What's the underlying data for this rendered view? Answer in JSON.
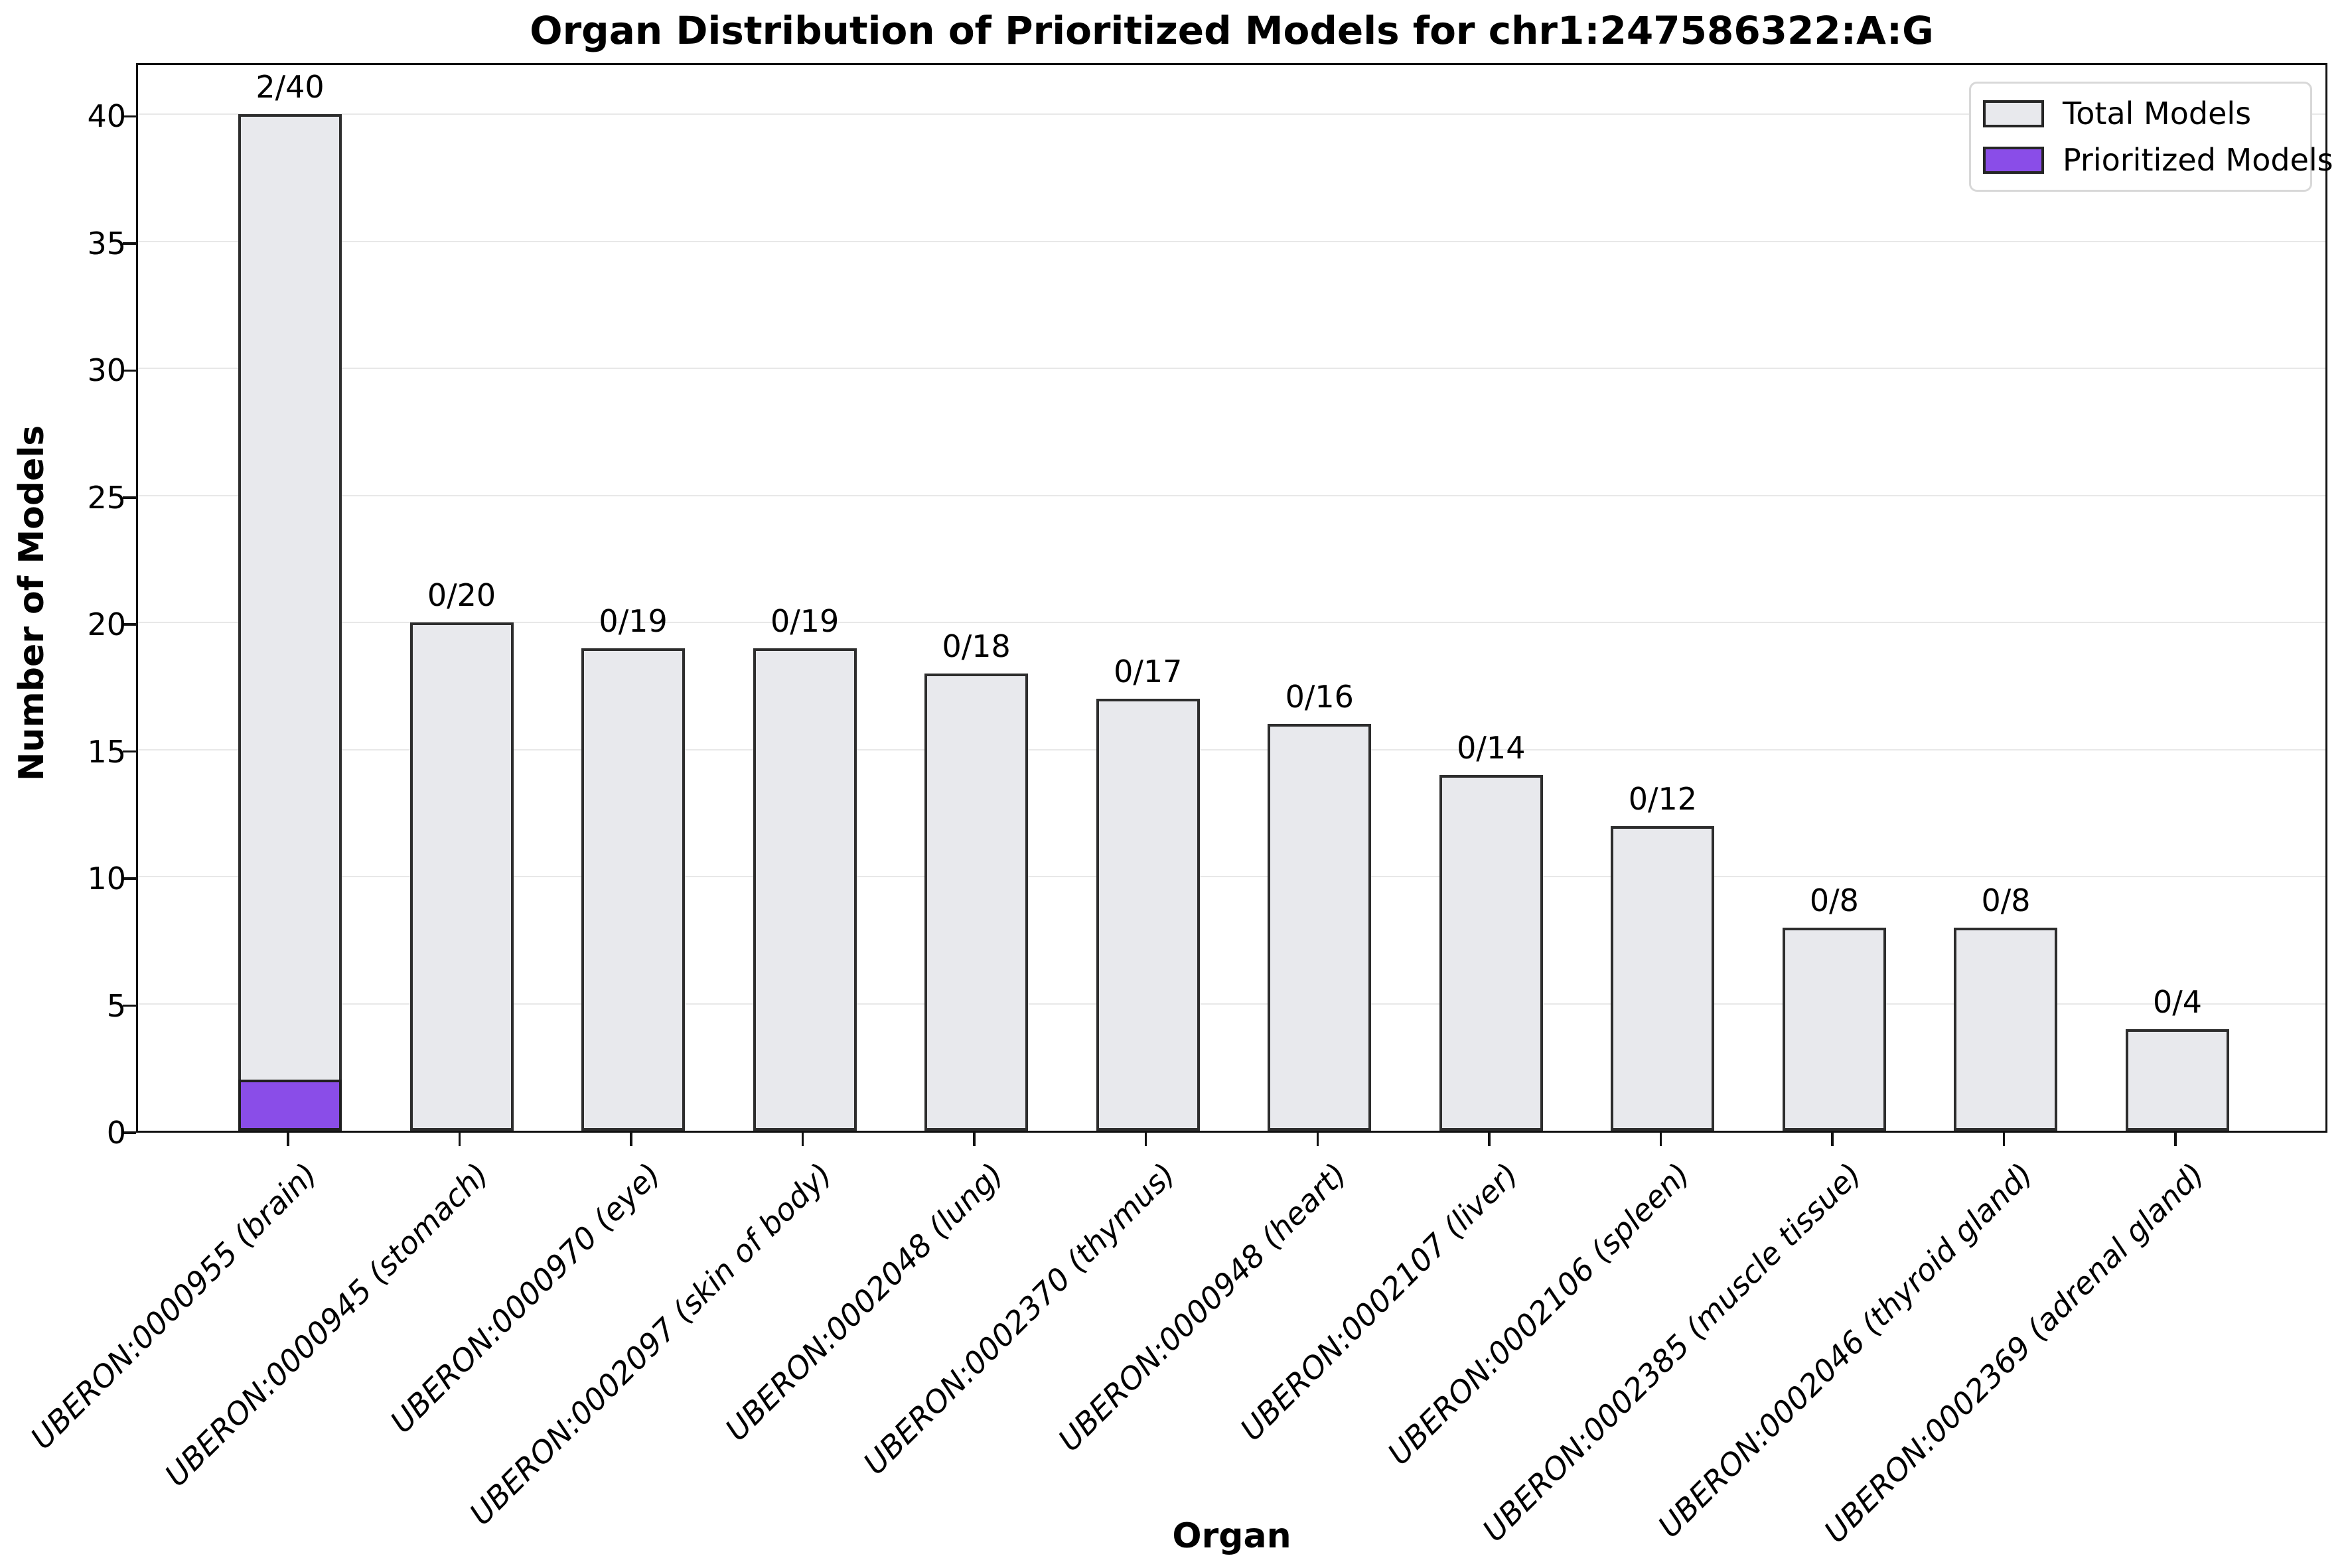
{
  "chart_data": {
    "type": "bar",
    "title": "Organ Distribution of Prioritized Models for chr1:247586322:A:G",
    "xlabel": "Organ",
    "ylabel": "Number of Models",
    "ylim": [
      0,
      42.1
    ],
    "yticks": [
      0,
      5,
      10,
      15,
      20,
      25,
      30,
      35,
      40
    ],
    "grid": "horizontal",
    "legend_position": "upper right",
    "categories": [
      "UBERON:0000955 (brain)",
      "UBERON:0000945 (stomach)",
      "UBERON:0000970 (eye)",
      "UBERON:0002097 (skin of body)",
      "UBERON:0002048 (lung)",
      "UBERON:0002370 (thymus)",
      "UBERON:0000948 (heart)",
      "UBERON:0002107 (liver)",
      "UBERON:0002106 (spleen)",
      "UBERON:0002385 (muscle tissue)",
      "UBERON:0002046 (thyroid gland)",
      "UBERON:0002369 (adrenal gland)"
    ],
    "series": [
      {
        "name": "Total Models",
        "color": "#e8e9ed",
        "values": [
          40,
          20,
          19,
          19,
          18,
          17,
          16,
          14,
          12,
          8,
          8,
          4
        ]
      },
      {
        "name": "Prioritized Models",
        "color": "#8a4de8",
        "values": [
          2,
          0,
          0,
          0,
          0,
          0,
          0,
          0,
          0,
          0,
          0,
          0
        ]
      }
    ],
    "annotations": [
      "2/40",
      "0/20",
      "0/19",
      "0/19",
      "0/18",
      "0/17",
      "0/16",
      "0/14",
      "0/12",
      "0/8",
      "0/8",
      "0/4"
    ],
    "colors": {
      "total_fill": "#e8e9ed",
      "prioritized_fill": "#8a4de8",
      "bar_edge": "#2d2d2d",
      "grid": "#e8e8e8",
      "spine": "#111111"
    }
  }
}
